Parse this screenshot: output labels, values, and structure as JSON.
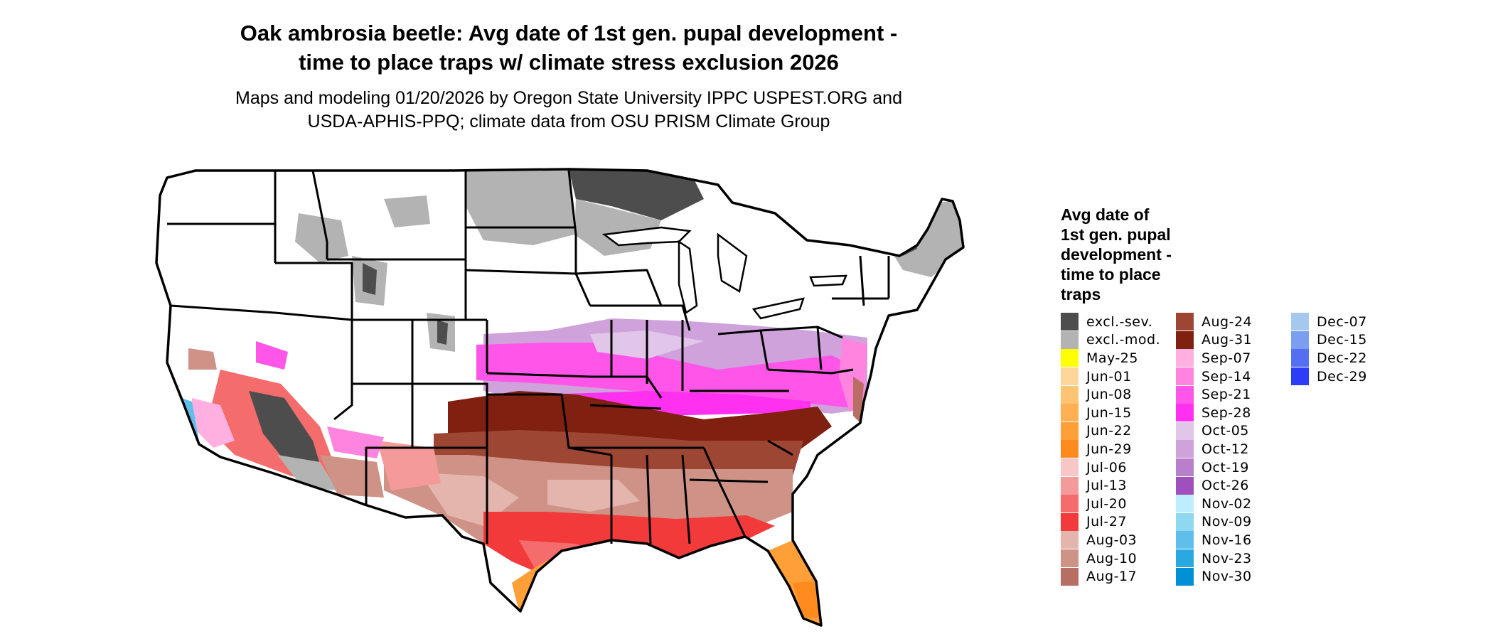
{
  "header": {
    "title_line1": "Oak ambrosia beetle: Avg date of 1st gen. pupal development -",
    "title_line2": "time to place traps w/ climate stress exclusion 2026",
    "subtitle_line1": "Maps and modeling 01/20/2026 by Oregon State University IPPC USPEST.ORG and",
    "subtitle_line2": "USDA-APHIS-PPQ; climate data from OSU PRISM Climate Group"
  },
  "legend": {
    "title_lines": [
      "Avg date of",
      "1st gen. pupal",
      "development -",
      "time to place",
      "traps"
    ],
    "columns": [
      [
        {
          "label": "excl.-sev.",
          "color": "#4d4d4d"
        },
        {
          "label": "excl.-mod.",
          "color": "#b3b3b3"
        },
        {
          "label": "May-25",
          "color": "#ffff00"
        },
        {
          "label": "Jun-01",
          "color": "#ffd699"
        },
        {
          "label": "Jun-08",
          "color": "#ffc473"
        },
        {
          "label": "Jun-15",
          "color": "#ffb052"
        },
        {
          "label": "Jun-22",
          "color": "#ff9f38"
        },
        {
          "label": "Jun-29",
          "color": "#ff8a1e"
        },
        {
          "label": "Jul-06",
          "color": "#f7c6c6"
        },
        {
          "label": "Jul-13",
          "color": "#f59a9a"
        },
        {
          "label": "Jul-20",
          "color": "#f46c6c"
        },
        {
          "label": "Jul-27",
          "color": "#f23a3a"
        },
        {
          "label": "Aug-03",
          "color": "#e3b5ad"
        },
        {
          "label": "Aug-10",
          "color": "#cf9286"
        },
        {
          "label": "Aug-17",
          "color": "#b86e62"
        }
      ],
      [
        {
          "label": "Aug-24",
          "color": "#9e4634"
        },
        {
          "label": "Aug-31",
          "color": "#7f2010"
        },
        {
          "label": "Sep-07",
          "color": "#ffb0e0"
        },
        {
          "label": "Sep-14",
          "color": "#ff84e0"
        },
        {
          "label": "Sep-21",
          "color": "#ff55e8"
        },
        {
          "label": "Sep-28",
          "color": "#ff30f0"
        },
        {
          "label": "Oct-05",
          "color": "#e2c6ea"
        },
        {
          "label": "Oct-12",
          "color": "#cfa2dc"
        },
        {
          "label": "Oct-19",
          "color": "#b97fcc"
        },
        {
          "label": "Oct-26",
          "color": "#a050bc"
        },
        {
          "label": "Nov-02",
          "color": "#bdeeff"
        },
        {
          "label": "Nov-09",
          "color": "#8fd8f2"
        },
        {
          "label": "Nov-16",
          "color": "#5ec0ea"
        },
        {
          "label": "Nov-23",
          "color": "#2aa8e0"
        },
        {
          "label": "Nov-30",
          "color": "#0090d6"
        }
      ],
      [
        {
          "label": "Dec-07",
          "color": "#a6c8ee"
        },
        {
          "label": "Dec-15",
          "color": "#7b9ef0"
        },
        {
          "label": "Dec-22",
          "color": "#5470f0"
        },
        {
          "label": "Dec-29",
          "color": "#2b3ef5"
        }
      ]
    ]
  }
}
